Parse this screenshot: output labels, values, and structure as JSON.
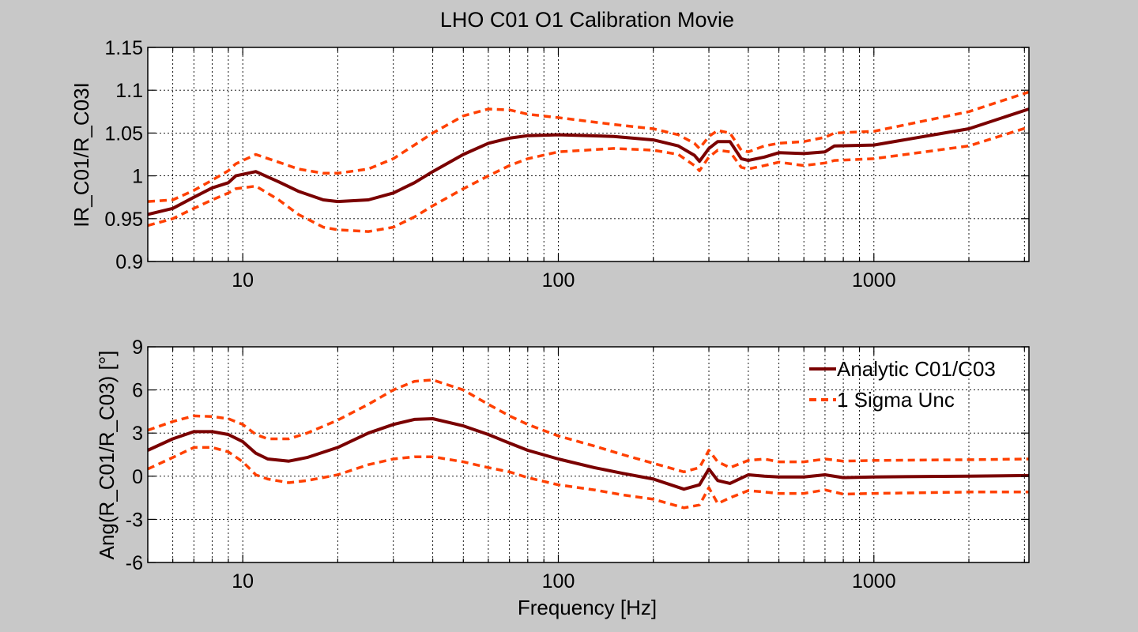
{
  "title": "LHO C01 O1 Calibration Movie",
  "colors": {
    "background": "#c8c8c8",
    "plot_bg": "#ffffff",
    "central": "#7a0000",
    "uncertainty": "#ff4000"
  },
  "legend": {
    "central_label": "Analytic C01/C03",
    "uncertainty_label": "1 Sigma Unc",
    "placement": "top-right"
  },
  "chart_data": [
    {
      "type": "line",
      "title": "LHO C01 O1 Calibration Movie",
      "xlabel": "",
      "ylabel": "IR_C01/R_C03I",
      "xscale": "log",
      "xlim": [
        5,
        3100
      ],
      "ylim": [
        0.9,
        1.15
      ],
      "xticks": [
        10,
        100,
        1000
      ],
      "xtick_labels": [
        "10",
        "100",
        "1000"
      ],
      "yticks": [
        0.9,
        0.95,
        1,
        1.05,
        1.1,
        1.15
      ],
      "ytick_labels": [
        "0.9",
        "0.95",
        "1",
        "1.05",
        "1.1",
        "1.15"
      ],
      "grid": true,
      "x": [
        5,
        6,
        7,
        8,
        9,
        9.5,
        11,
        13,
        15,
        18,
        20,
        25,
        30,
        35,
        40,
        50,
        60,
        70,
        80,
        100,
        150,
        200,
        240,
        270,
        280,
        300,
        320,
        350,
        380,
        400,
        450,
        500,
        600,
        700,
        750,
        1000,
        2000,
        3100
      ],
      "series": [
        {
          "name": "Analytic C01/C03",
          "style": "solid",
          "values": [
            0.955,
            0.962,
            0.975,
            0.986,
            0.992,
            1.0,
            1.005,
            0.993,
            0.982,
            0.972,
            0.97,
            0.972,
            0.98,
            0.992,
            1.005,
            1.025,
            1.038,
            1.044,
            1.047,
            1.048,
            1.046,
            1.042,
            1.035,
            1.024,
            1.017,
            1.032,
            1.04,
            1.04,
            1.02,
            1.018,
            1.022,
            1.027,
            1.026,
            1.028,
            1.035,
            1.036,
            1.055,
            1.078
          ]
        },
        {
          "name": "1 Sigma Unc",
          "style": "dashed",
          "values": [
            0.97,
            0.972,
            0.983,
            0.995,
            1.006,
            1.014,
            1.025,
            1.016,
            1.008,
            1.003,
            1.003,
            1.008,
            1.02,
            1.036,
            1.05,
            1.07,
            1.078,
            1.077,
            1.072,
            1.068,
            1.06,
            1.055,
            1.048,
            1.038,
            1.032,
            1.046,
            1.053,
            1.05,
            1.03,
            1.028,
            1.035,
            1.038,
            1.04,
            1.045,
            1.05,
            1.052,
            1.075,
            1.098
          ]
        },
        {
          "name": "",
          "style": "dashed",
          "values": [
            0.942,
            0.95,
            0.962,
            0.972,
            0.98,
            0.985,
            0.988,
            0.972,
            0.955,
            0.94,
            0.937,
            0.935,
            0.94,
            0.952,
            0.965,
            0.985,
            1.0,
            1.012,
            1.02,
            1.028,
            1.032,
            1.03,
            1.025,
            1.012,
            1.006,
            1.022,
            1.03,
            1.028,
            1.01,
            1.008,
            1.012,
            1.016,
            1.012,
            1.015,
            1.018,
            1.02,
            1.035,
            1.057
          ]
        }
      ]
    },
    {
      "type": "line",
      "title": "",
      "xlabel": "Frequency [Hz]",
      "ylabel": "Ang(R_C01/R_C03) [°]",
      "xscale": "log",
      "xlim": [
        5,
        3100
      ],
      "ylim": [
        -6,
        9
      ],
      "xticks": [
        10,
        100,
        1000
      ],
      "xtick_labels": [
        "10",
        "100",
        "1000"
      ],
      "yticks": [
        -6,
        -3,
        0,
        3,
        6,
        9
      ],
      "ytick_labels": [
        "-6",
        "-3",
        "0",
        "3",
        "6",
        "9"
      ],
      "grid": true,
      "legend": "top-right",
      "x": [
        5,
        6,
        7,
        8,
        9,
        10,
        11,
        12,
        14,
        16,
        20,
        25,
        30,
        35,
        40,
        50,
        60,
        70,
        80,
        100,
        130,
        160,
        200,
        250,
        280,
        300,
        320,
        350,
        400,
        450,
        500,
        600,
        700,
        800,
        1000,
        2000,
        3100
      ],
      "series": [
        {
          "name": "Analytic C01/C03",
          "style": "solid",
          "values": [
            1.8,
            2.6,
            3.1,
            3.1,
            2.9,
            2.4,
            1.6,
            1.2,
            1.05,
            1.3,
            2.0,
            3.0,
            3.6,
            3.95,
            4.0,
            3.5,
            2.9,
            2.3,
            1.8,
            1.2,
            0.6,
            0.2,
            -0.2,
            -0.9,
            -0.6,
            0.5,
            -0.3,
            -0.5,
            0.1,
            0.0,
            -0.05,
            -0.05,
            0.1,
            -0.1,
            -0.05,
            0.0,
            0.05
          ]
        },
        {
          "name": "1 Sigma Unc",
          "style": "dashed",
          "values": [
            3.2,
            3.8,
            4.2,
            4.15,
            4.0,
            3.6,
            2.9,
            2.6,
            2.6,
            3.0,
            3.9,
            5.0,
            6.0,
            6.6,
            6.7,
            6.0,
            5.0,
            4.2,
            3.6,
            2.8,
            2.1,
            1.5,
            0.9,
            0.3,
            0.6,
            1.8,
            1.0,
            0.6,
            1.1,
            1.2,
            1.0,
            1.0,
            1.2,
            1.05,
            1.1,
            1.15,
            1.2
          ]
        },
        {
          "name": "",
          "style": "dashed",
          "values": [
            0.5,
            1.3,
            2.0,
            2.0,
            1.7,
            1.0,
            0.1,
            -0.2,
            -0.45,
            -0.3,
            0.1,
            0.8,
            1.2,
            1.35,
            1.35,
            1.0,
            0.6,
            0.3,
            -0.1,
            -0.6,
            -0.95,
            -1.3,
            -1.6,
            -2.2,
            -2.0,
            -0.8,
            -1.9,
            -1.5,
            -1.0,
            -1.1,
            -1.2,
            -1.2,
            -0.95,
            -1.25,
            -1.2,
            -1.1,
            -1.1
          ]
        }
      ]
    }
  ]
}
